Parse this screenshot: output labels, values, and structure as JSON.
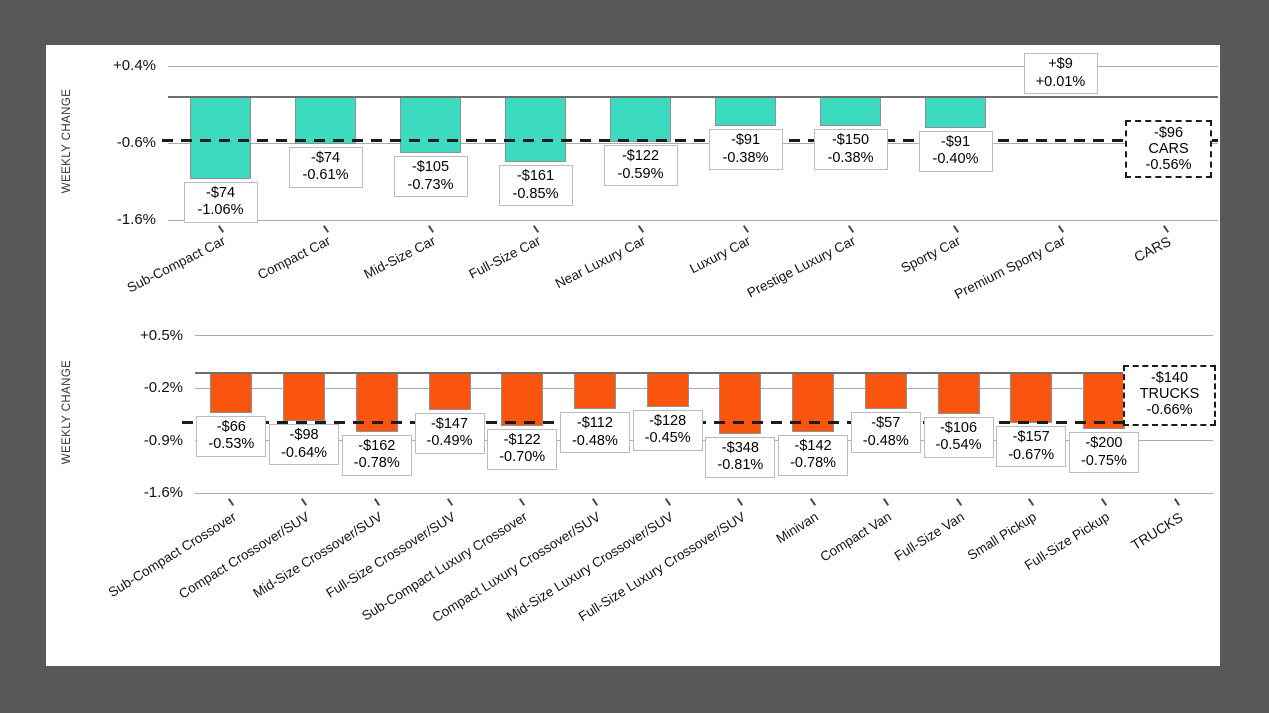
{
  "page": {
    "background_color": "#59595a",
    "panel_background": "#ffffff"
  },
  "chart_data": [
    {
      "id": "cars",
      "type": "bar",
      "ylabel": "WEEKLY CHANGE",
      "bar_color": "#3cdbc0",
      "grid": true,
      "ylim": [
        0.4,
        -1.6
      ],
      "yticks": [
        {
          "label": "+0.4%",
          "value": 0.4
        },
        {
          "label": "-0.6%",
          "value": -0.6
        },
        {
          "label": "-1.6%",
          "value": -1.6
        }
      ],
      "points": [
        {
          "category": "Sub-Compact Car",
          "dollar": "-$74",
          "pct": -1.06,
          "pct_label": "-1.06%"
        },
        {
          "category": "Compact Car",
          "dollar": "-$74",
          "pct": -0.61,
          "pct_label": "-0.61%"
        },
        {
          "category": "Mid-Size Car",
          "dollar": "-$105",
          "pct": -0.73,
          "pct_label": "-0.73%"
        },
        {
          "category": "Full-Size Car",
          "dollar": "-$161",
          "pct": -0.85,
          "pct_label": "-0.85%"
        },
        {
          "category": "Near Luxury Car",
          "dollar": "-$122",
          "pct": -0.59,
          "pct_label": "-0.59%"
        },
        {
          "category": "Luxury Car",
          "dollar": "-$91",
          "pct": -0.38,
          "pct_label": "-0.38%"
        },
        {
          "category": "Prestige Luxury Car",
          "dollar": "-$150",
          "pct": -0.38,
          "pct_label": "-0.38%"
        },
        {
          "category": "Sporty Car",
          "dollar": "-$91",
          "pct": -0.4,
          "pct_label": "-0.40%"
        },
        {
          "category": "Premium Sporty Car",
          "dollar": "+$9",
          "pct": 0.01,
          "pct_label": "+0.01%"
        }
      ],
      "summary": {
        "category": "CARS",
        "dollar": "-$96",
        "pct": -0.56,
        "pct_label": "-0.56%"
      }
    },
    {
      "id": "trucks",
      "type": "bar",
      "ylabel": "WEEKLY CHANGE",
      "bar_color": "#fa550e",
      "grid": true,
      "ylim": [
        0.5,
        -1.6
      ],
      "yticks": [
        {
          "label": "+0.5%",
          "value": 0.5
        },
        {
          "label": "-0.2%",
          "value": -0.2
        },
        {
          "label": "-0.9%",
          "value": -0.9
        },
        {
          "label": "-1.6%",
          "value": -1.6
        }
      ],
      "points": [
        {
          "category": "Sub-Compact Crossover",
          "dollar": "-$66",
          "pct": -0.53,
          "pct_label": "-0.53%"
        },
        {
          "category": "Compact Crossover/SUV",
          "dollar": "-$98",
          "pct": -0.64,
          "pct_label": "-0.64%"
        },
        {
          "category": "Mid-Size Crossover/SUV",
          "dollar": "-$162",
          "pct": -0.78,
          "pct_label": "-0.78%"
        },
        {
          "category": "Full-Size Crossover/SUV",
          "dollar": "-$147",
          "pct": -0.49,
          "pct_label": "-0.49%"
        },
        {
          "category": "Sub-Compact Luxury Crossover",
          "dollar": "-$122",
          "pct": -0.7,
          "pct_label": "-0.70%"
        },
        {
          "category": "Compact Luxury Crossover/SUV",
          "dollar": "-$112",
          "pct": -0.48,
          "pct_label": "-0.48%"
        },
        {
          "category": "Mid-Size Luxury Crossover/SUV",
          "dollar": "-$128",
          "pct": -0.45,
          "pct_label": "-0.45%"
        },
        {
          "category": "Full-Size Luxury Crossover/SUV",
          "dollar": "-$348",
          "pct": -0.81,
          "pct_label": "-0.81%"
        },
        {
          "category": "Minivan",
          "dollar": "-$142",
          "pct": -0.78,
          "pct_label": "-0.78%"
        },
        {
          "category": "Compact Van",
          "dollar": "-$57",
          "pct": -0.48,
          "pct_label": "-0.48%"
        },
        {
          "category": "Full-Size Van",
          "dollar": "-$106",
          "pct": -0.54,
          "pct_label": "-0.54%"
        },
        {
          "category": "Small Pickup",
          "dollar": "-$157",
          "pct": -0.67,
          "pct_label": "-0.67%"
        },
        {
          "category": "Full-Size Pickup",
          "dollar": "-$200",
          "pct": -0.75,
          "pct_label": "-0.75%"
        }
      ],
      "summary": {
        "category": "TRUCKS",
        "dollar": "-$140",
        "pct": -0.66,
        "pct_label": "-0.66%"
      }
    }
  ]
}
